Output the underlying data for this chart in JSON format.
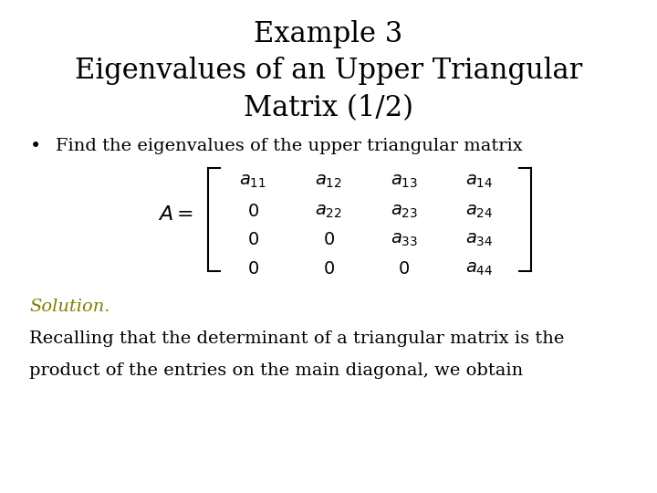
{
  "title_line1": "Example 3",
  "title_line2": "Eigenvalues of an Upper Triangular",
  "title_line3": "Matrix (1/2)",
  "bullet_text": "Find the eigenvalues of the upper triangular matrix",
  "solution_text": "Solution.",
  "solution_color": "#808000",
  "body_text1": "Recalling that the determinant of a triangular matrix is the",
  "body_text2": "product of the entries on the main diagonal, we obtain",
  "background_color": "#ffffff",
  "title_fontsize": 22,
  "body_fontsize": 14,
  "matrix_fontsize": 14
}
